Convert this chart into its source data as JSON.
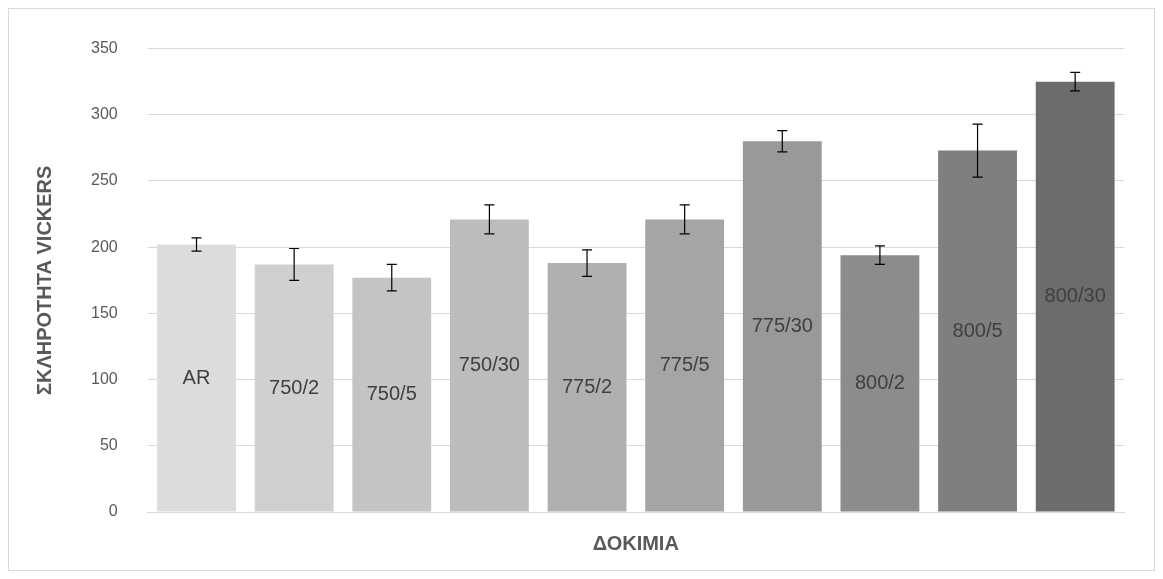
{
  "chart_data": {
    "type": "bar",
    "xlabel": "ΔΟΚΙΜΙΑ",
    "ylabel": "ΣΚΛΗΡΟΤΗΤΑ VICKERS",
    "categories": [
      "AR",
      "750/2",
      "750/5",
      "750/30",
      "775/2",
      "775/5",
      "775/30",
      "800/2",
      "800/5",
      "800/30"
    ],
    "values": [
      202,
      187,
      177,
      221,
      188,
      221,
      280,
      194,
      273,
      325
    ],
    "errors": [
      5,
      12,
      10,
      11,
      10,
      11,
      8,
      7,
      20,
      7
    ],
    "colors": [
      "#dcdcdc",
      "#d0d0d0",
      "#c4c4c4",
      "#bcbcbc",
      "#b0b0b0",
      "#a5a5a5",
      "#999999",
      "#8c8c8c",
      "#7f7f7f",
      "#6c6c6c"
    ],
    "ylim": [
      0,
      350
    ],
    "yticks": [
      0,
      50,
      100,
      150,
      200,
      250,
      300,
      350
    ],
    "grid": "y",
    "legend": false,
    "tick_labels": "y"
  }
}
